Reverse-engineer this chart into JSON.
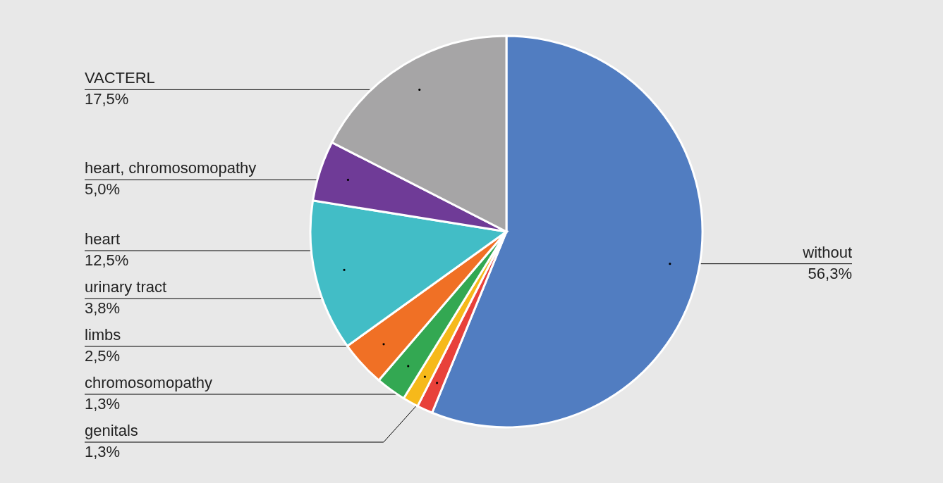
{
  "chart_data": {
    "type": "pie",
    "categories": [
      "without",
      "genitals",
      "chromosomopathy",
      "limbs",
      "urinary tract",
      "heart",
      "heart, chromosomopathy",
      "VACTERL"
    ],
    "values": [
      56.3,
      1.3,
      1.3,
      2.5,
      3.8,
      12.5,
      5.0,
      17.5
    ],
    "value_labels": [
      "56,3%",
      "1,3%",
      "1,3%",
      "2,5%",
      "3,8%",
      "12,5%",
      "5,0%",
      "17,5%"
    ],
    "colors": [
      "#517dc1",
      "#e8413a",
      "#f6b91a",
      "#33a852",
      "#f07025",
      "#42bdc6",
      "#6f3b97",
      "#a6a5a6"
    ]
  }
}
